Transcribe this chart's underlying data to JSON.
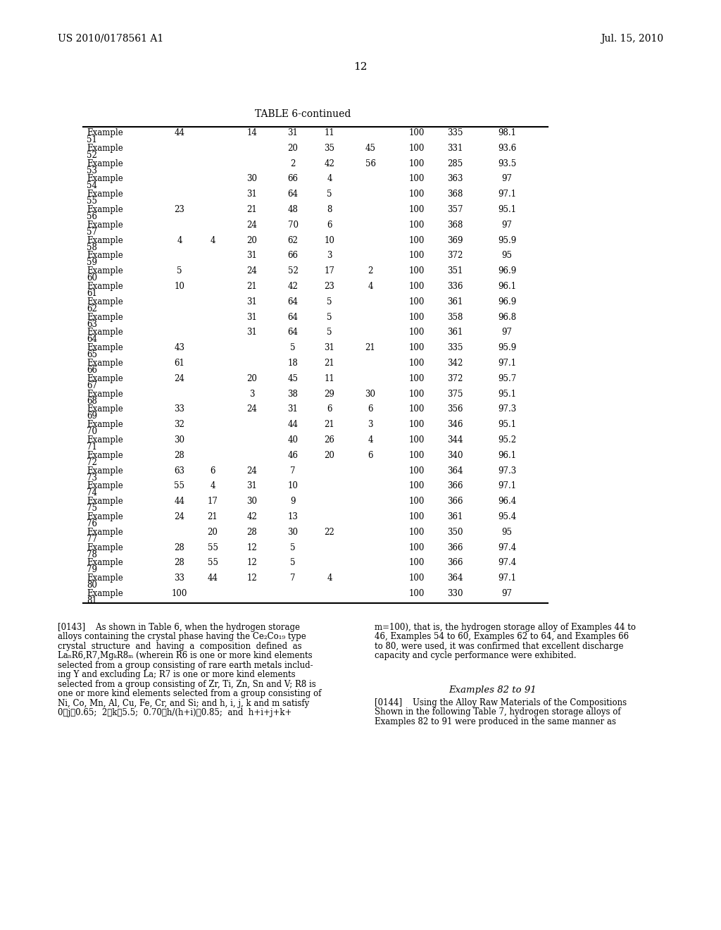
{
  "patent_number": "US 2010/0178561 A1",
  "date": "Jul. 15, 2010",
  "page_number": "12",
  "table_title": "TABLE 6-continued",
  "rows": [
    [
      "Example\n51",
      "44",
      "",
      "14",
      "31",
      "11",
      "",
      "100",
      "335",
      "98.1"
    ],
    [
      "Example\n52",
      "",
      "",
      "",
      "20",
      "35",
      "45",
      "100",
      "331",
      "93.6"
    ],
    [
      "Example\n53",
      "",
      "",
      "",
      "2",
      "42",
      "56",
      "100",
      "285",
      "93.5"
    ],
    [
      "Example\n54",
      "",
      "",
      "30",
      "66",
      "4",
      "",
      "100",
      "363",
      "97"
    ],
    [
      "Example\n55",
      "",
      "",
      "31",
      "64",
      "5",
      "",
      "100",
      "368",
      "97.1"
    ],
    [
      "Example\n56",
      "23",
      "",
      "21",
      "48",
      "8",
      "",
      "100",
      "357",
      "95.1"
    ],
    [
      "Example\n57",
      "",
      "",
      "24",
      "70",
      "6",
      "",
      "100",
      "368",
      "97"
    ],
    [
      "Example\n58",
      "4",
      "4",
      "20",
      "62",
      "10",
      "",
      "100",
      "369",
      "95.9"
    ],
    [
      "Example\n59",
      "",
      "",
      "31",
      "66",
      "3",
      "",
      "100",
      "372",
      "95"
    ],
    [
      "Example\n60",
      "5",
      "",
      "24",
      "52",
      "17",
      "2",
      "100",
      "351",
      "96.9"
    ],
    [
      "Example\n61",
      "10",
      "",
      "21",
      "42",
      "23",
      "4",
      "100",
      "336",
      "96.1"
    ],
    [
      "Example\n62",
      "",
      "",
      "31",
      "64",
      "5",
      "",
      "100",
      "361",
      "96.9"
    ],
    [
      "Example\n63",
      "",
      "",
      "31",
      "64",
      "5",
      "",
      "100",
      "358",
      "96.8"
    ],
    [
      "Example\n64",
      "",
      "",
      "31",
      "64",
      "5",
      "",
      "100",
      "361",
      "97"
    ],
    [
      "Example\n65",
      "43",
      "",
      "",
      "5",
      "31",
      "21",
      "100",
      "335",
      "95.9"
    ],
    [
      "Example\n66",
      "61",
      "",
      "",
      "18",
      "21",
      "",
      "100",
      "342",
      "97.1"
    ],
    [
      "Example\n67",
      "24",
      "",
      "20",
      "45",
      "11",
      "",
      "100",
      "372",
      "95.7"
    ],
    [
      "Example\n68",
      "",
      "",
      "3",
      "38",
      "29",
      "30",
      "100",
      "375",
      "95.1"
    ],
    [
      "Example\n69",
      "33",
      "",
      "24",
      "31",
      "6",
      "6",
      "100",
      "356",
      "97.3"
    ],
    [
      "Example\n70",
      "32",
      "",
      "",
      "44",
      "21",
      "3",
      "100",
      "346",
      "95.1"
    ],
    [
      "Example\n71",
      "30",
      "",
      "",
      "40",
      "26",
      "4",
      "100",
      "344",
      "95.2"
    ],
    [
      "Example\n72",
      "28",
      "",
      "",
      "46",
      "20",
      "6",
      "100",
      "340",
      "96.1"
    ],
    [
      "Example\n73",
      "63",
      "6",
      "24",
      "7",
      "",
      "",
      "100",
      "364",
      "97.3"
    ],
    [
      "Example\n74",
      "55",
      "4",
      "31",
      "10",
      "",
      "",
      "100",
      "366",
      "97.1"
    ],
    [
      "Example\n75",
      "44",
      "17",
      "30",
      "9",
      "",
      "",
      "100",
      "366",
      "96.4"
    ],
    [
      "Example\n76",
      "24",
      "21",
      "42",
      "13",
      "",
      "",
      "100",
      "361",
      "95.4"
    ],
    [
      "Example\n77",
      "",
      "20",
      "28",
      "30",
      "22",
      "",
      "100",
      "350",
      "95"
    ],
    [
      "Example\n78",
      "28",
      "55",
      "12",
      "5",
      "",
      "",
      "100",
      "366",
      "97.4"
    ],
    [
      "Example\n79",
      "28",
      "55",
      "12",
      "5",
      "",
      "",
      "100",
      "366",
      "97.4"
    ],
    [
      "Example\n80",
      "33",
      "44",
      "12",
      "7",
      "4",
      "",
      "100",
      "364",
      "97.1"
    ],
    [
      "Example\n81",
      "100",
      "",
      "",
      "",
      "",
      "",
      "100",
      "330",
      "97"
    ]
  ],
  "left_para_lines": [
    "[0143]    As shown in Table 6, when the hydrogen storage",
    "alloys containing the crystal phase having the Ce₂Co₁₉ type",
    "crystal  structure  and  having  a  composition  defined  as",
    "LaₙR6,R7,MgₖR8ₘ (wherein R6 is one or more kind elements",
    "selected from a group consisting of rare earth metals includ-",
    "ing Y and excluding La; R7 is one or more kind elements",
    "selected from a group consisting of Zr, Ti, Zn, Sn and V; R8 is",
    "one or more kind elements selected from a group consisting of",
    "Ni, Co, Mn, Al, Cu, Fe, Cr, and Si; and h, i, j, k and m satisfy",
    "0≦j≦0.65;  2≦k≦5.5;  0.70≦h/(h+i)≦0.85;  and  h+i+j+k+"
  ],
  "right_para_top_lines": [
    "m=100), that is, the hydrogen storage alloy of Examples 44 to",
    "46, Examples 54 to 60, Examples 62 to 64, and Examples 66",
    "to 80, were used, it was confirmed that excellent discharge",
    "capacity and cycle performance were exhibited."
  ],
  "section_title": "Examples 82 to 91",
  "right_para_144_lines": [
    "[0144]    Using the Alloy Raw Materials of the Compositions",
    "Shown in the following Table 7, hydrogen storage alloys of",
    "Examples 82 to 91 were produced in the same manner as"
  ]
}
